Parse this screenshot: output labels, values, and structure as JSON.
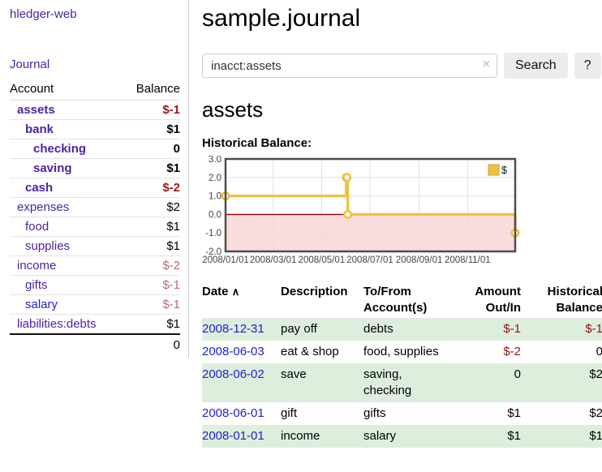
{
  "app": {
    "title": "hledger-web"
  },
  "header": {
    "title": "sample.journal"
  },
  "search": {
    "value": "inacct:assets",
    "clear_icon": "×",
    "button": "Search",
    "help_button": "?"
  },
  "account_page": {
    "title": "assets",
    "chart_label": "Historical Balance:"
  },
  "sidebar": {
    "journal_link": "Journal",
    "accounts_table": {
      "headers": {
        "account": "Account",
        "balance": "Balance"
      },
      "rows": [
        {
          "name": "assets",
          "balance": "$-1",
          "depth": 1,
          "bold": true,
          "neg": "strong",
          "blue": false
        },
        {
          "name": "bank",
          "balance": "$1",
          "depth": 2,
          "bold": true,
          "neg": "none",
          "blue": false
        },
        {
          "name": "checking",
          "balance": "0",
          "depth": 3,
          "bold": true,
          "neg": "none",
          "blue": false
        },
        {
          "name": "saving",
          "balance": "$1",
          "depth": 3,
          "bold": true,
          "neg": "none",
          "blue": false
        },
        {
          "name": "cash",
          "balance": "$-2",
          "depth": 2,
          "bold": true,
          "neg": "strong",
          "blue": false
        },
        {
          "name": "expenses",
          "balance": "$2",
          "depth": 1,
          "bold": false,
          "neg": "none",
          "blue": false
        },
        {
          "name": "food",
          "balance": "$1",
          "depth": 2,
          "bold": false,
          "neg": "none",
          "blue": false
        },
        {
          "name": "supplies",
          "balance": "$1",
          "depth": 2,
          "bold": false,
          "neg": "none",
          "blue": false
        },
        {
          "name": "income",
          "balance": "$-2",
          "depth": 1,
          "bold": false,
          "neg": "muted",
          "blue": false
        },
        {
          "name": "gifts",
          "balance": "$-1",
          "depth": 2,
          "bold": false,
          "neg": "muted",
          "blue": false
        },
        {
          "name": "salary",
          "balance": "$-1",
          "depth": 2,
          "bold": false,
          "neg": "muted",
          "blue": true
        },
        {
          "name": "liabilities:debts",
          "balance": "$1",
          "depth": 1,
          "bold": false,
          "neg": "none",
          "blue": false
        }
      ],
      "total": "0"
    }
  },
  "chart_data": {
    "type": "line",
    "title": "Historical Balance:",
    "step": true,
    "xlim_days": [
      0,
      365
    ],
    "ylim": [
      -2,
      3
    ],
    "grid": true,
    "legend": {
      "label": "$",
      "position": "top-right"
    },
    "y_ticks": [
      {
        "label": "3.0",
        "value": 3
      },
      {
        "label": "2.0",
        "value": 2
      },
      {
        "label": "1.0",
        "value": 1
      },
      {
        "label": "0.0",
        "value": 0
      },
      {
        "label": "-1.0",
        "value": -1
      },
      {
        "label": "-2.0",
        "value": -2
      }
    ],
    "x_ticks": [
      {
        "label": "2008/01/01",
        "day": 0
      },
      {
        "label": "2008/03/01",
        "day": 60
      },
      {
        "label": "2008/05/01",
        "day": 121
      },
      {
        "label": "2008/07/01",
        "day": 182
      },
      {
        "label": "2008/09/01",
        "day": 244
      },
      {
        "label": "2008/11/01",
        "day": 305
      }
    ],
    "series": [
      {
        "name": "$",
        "points": [
          {
            "date": "2008/01/01",
            "day": 0,
            "value": 1
          },
          {
            "date": "2008/06/01",
            "day": 152,
            "value": 2
          },
          {
            "date": "2008/06/02",
            "day": 153,
            "value": 2
          },
          {
            "date": "2008/06/03",
            "day": 154,
            "value": 0
          },
          {
            "date": "2008/12/31",
            "day": 365,
            "value": -1
          }
        ]
      }
    ]
  },
  "register_table": {
    "headers": {
      "date": {
        "label": "Date",
        "sort_icon": "∧"
      },
      "description": "Description",
      "account": {
        "line1": "To/From",
        "line2": "Account(s)"
      },
      "amount": {
        "line1": "Amount",
        "line2": "Out/In"
      },
      "balance": {
        "line1": "Historical",
        "line2": "Balance"
      }
    },
    "rows": [
      {
        "date": "2008-12-31",
        "description": "pay off",
        "accounts": "debts",
        "amount": "$-1",
        "amount_neg": true,
        "balance": "$-1",
        "balance_neg": true
      },
      {
        "date": "2008-06-03",
        "description": "eat & shop",
        "accounts": "food, supplies",
        "amount": "$-2",
        "amount_neg": true,
        "balance": "0",
        "balance_neg": false
      },
      {
        "date": "2008-06-02",
        "description": "save",
        "accounts": "saving,\nchecking",
        "amount": "0",
        "amount_neg": false,
        "balance": "$2",
        "balance_neg": false
      },
      {
        "date": "2008-06-01",
        "description": "gift",
        "accounts": "gifts",
        "amount": "$1",
        "amount_neg": false,
        "balance": "$2",
        "balance_neg": false
      },
      {
        "date": "2008-01-01",
        "description": "income",
        "accounts": "salary",
        "amount": "$1",
        "amount_neg": false,
        "balance": "$1",
        "balance_neg": false
      }
    ]
  },
  "colors": {
    "purple": "#4e22a3",
    "blue": "#1f1fd1",
    "neg_strong": "#a01818",
    "neg_muted": "#b76b6b",
    "table_neg": "#8f1212",
    "row_green": "#ddeedd",
    "gold": "#edc240",
    "gold_border": "#c9a32f",
    "pink": "#fadcdc",
    "zero_line": "#a40000",
    "grid": "#e0e0e0",
    "chart_border": "#4e4e4e",
    "tick_text": "#444444"
  }
}
